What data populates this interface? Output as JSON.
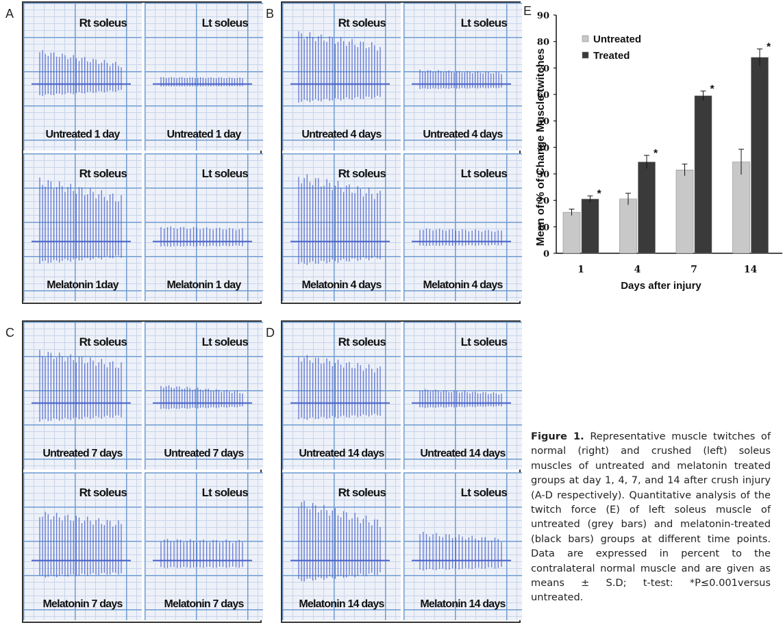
{
  "panels": [
    {
      "letter": "A",
      "cells": [
        {
          "title": "Rt soleus",
          "foot": "Untreated 1 day"
        },
        {
          "title": "Lt soleus",
          "foot": "Untreated 1 day"
        },
        {
          "title": "Rt soleus",
          "foot": "Melatonin 1day"
        },
        {
          "title": "Lt soleus",
          "foot": "Melatonin 1 day"
        }
      ]
    },
    {
      "letter": "B",
      "cells": [
        {
          "title": "Rt soleus",
          "foot": "Untreated 4 days"
        },
        {
          "title": "Lt soleus",
          "foot": "Untreated 4 days"
        },
        {
          "title": "Rt soleus",
          "foot": "Melatonin 4 days"
        },
        {
          "title": "Lt soleus",
          "foot": "Melatonin 4 days"
        }
      ]
    },
    {
      "letter": "C",
      "cells": [
        {
          "title": "Rt soleus",
          "foot": "Untreated 7 days"
        },
        {
          "title": "Lt soleus",
          "foot": "Untreated 7 days"
        },
        {
          "title": "Rt soleus",
          "foot": "Melatonin 7 days"
        },
        {
          "title": "Lt soleus",
          "foot": "Melatonin 7 days"
        }
      ]
    },
    {
      "letter": "D",
      "cells": [
        {
          "title": "Rt soleus",
          "foot": "Untreated 14 days"
        },
        {
          "title": "Lt soleus",
          "foot": "Untreated 14 days"
        },
        {
          "title": "Rt soleus",
          "foot": "Melatonin 14 days"
        },
        {
          "title": "Lt soleus",
          "foot": "Melatonin 14 days"
        }
      ]
    }
  ],
  "chart_panel_letter": "E",
  "chart_data": {
    "type": "bar",
    "categories": [
      "1",
      "4",
      "7",
      "14"
    ],
    "series": [
      {
        "name": "Untreated",
        "values": [
          15.5,
          20.5,
          31.5,
          34.5
        ],
        "errors": [
          1.2,
          2.2,
          2.2,
          4.8
        ],
        "color": "#c8c8c8"
      },
      {
        "name": "Treated",
        "values": [
          20.5,
          34.5,
          59.5,
          74.0
        ],
        "errors": [
          1.2,
          2.5,
          1.8,
          3.2
        ],
        "color": "#3a3a3a"
      }
    ],
    "significance_marker": "*",
    "significant": [
      true,
      true,
      true,
      true
    ],
    "xlabel": "Days after injury",
    "ylabel": "Mean of % of Change Muscle twitches",
    "ylim": [
      0,
      90
    ],
    "yticks": [
      "0",
      "10",
      "20",
      "30",
      "40",
      "50",
      "60",
      "70",
      "80",
      "90"
    ],
    "legend_position": "top-left"
  },
  "caption": {
    "label": "Figure 1.",
    "text": " Representative muscle twitches of normal (right) and crushed (left) soleus muscles of untreated and melatonin treated groups at day 1, 4, 7, and 14 after crush injury (A-D respectively). Quantitative analysis of the twitch force (E) of left soleus muscle of untreated (grey bars) and melatonin-treated (black bars) groups at different time points. Data are expressed in percent to the contralateral normal muscle and are given as means ± S.D; t-test: *P≤0.001versus untreated."
  },
  "traces": [
    [
      0.55,
      0.7,
      0.88,
      1.05,
      0.65,
      0.75,
      0.58
    ],
    [
      0.14,
      0.08,
      0.04,
      0.32,
      0.22,
      0.4,
      0.36
    ],
    [
      0.66,
      0.92,
      1.02,
      0.95,
      0.66,
      0.7,
      0.72
    ],
    [
      0.42,
      0.22,
      0.58,
      0.72,
      0.25,
      0.45,
      0.64
    ],
    [
      0.56,
      0.95,
      0.92,
      0.95,
      0.66,
      0.64,
      0.6
    ],
    [
      0.37,
      0.16,
      0.82,
      0.84,
      0.72,
      0.54,
      0.96
    ],
    [
      0.77,
      0.91,
      0.88,
      0.84,
      0.7,
      0.84,
      0.7
    ],
    [
      0.74,
      0.84,
      0.61,
      0.9,
      0.56,
      0.75,
      0.78
    ]
  ],
  "colors": {
    "trace": "#4a63c9",
    "grid_major": "#6d9bd1",
    "grid_minor": "#c7d4ea",
    "panel_border": "#333333"
  }
}
